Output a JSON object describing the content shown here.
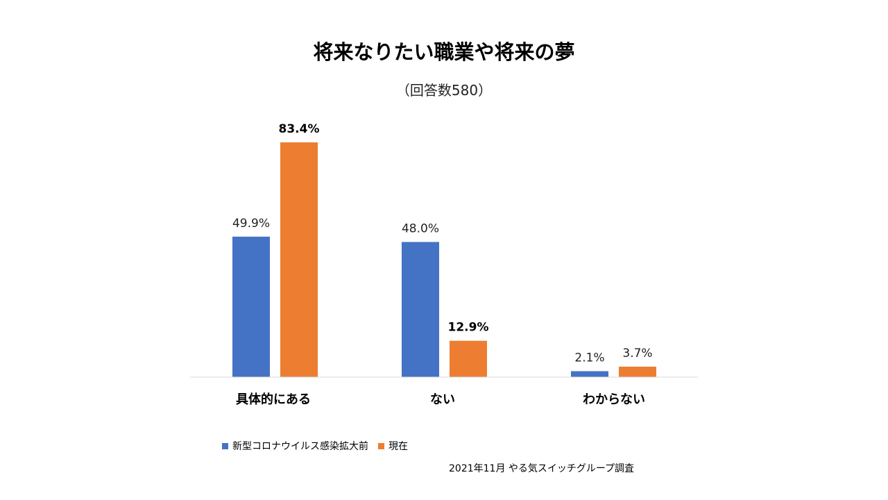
{
  "chart_data": {
    "type": "bar",
    "title": "将来なりたい職業や将来の夢",
    "subtitle": "（回答数580）",
    "categories": [
      "具体的にある",
      "ない",
      "わからない"
    ],
    "series": [
      {
        "name": "新型コロナウイルス感染拡大前",
        "color": "#4472C4",
        "values": [
          49.9,
          48.0,
          2.1
        ],
        "labels": [
          "49.9%",
          "48.0%",
          "2.1%"
        ],
        "bold": [
          false,
          false,
          false
        ]
      },
      {
        "name": "現在",
        "color": "#ED7D31",
        "values": [
          83.4,
          12.9,
          3.7
        ],
        "labels": [
          "83.4%",
          "12.9%",
          "3.7%"
        ],
        "bold": [
          true,
          true,
          false
        ]
      }
    ],
    "ylim": [
      0,
      100
    ],
    "grid": false,
    "legend": "bottom-left",
    "source": "2021年11月 やる気スイッチグループ調査"
  }
}
